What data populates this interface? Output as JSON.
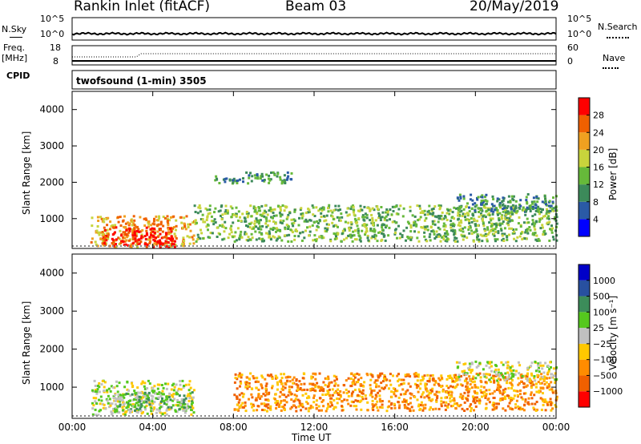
{
  "header": {
    "title": "Rankin Inlet (fitACF)",
    "beam": "Beam 03",
    "date": "20/May/2019"
  },
  "top_panels": {
    "nsky_label": "N.Sky",
    "nsky_ticks": [
      "10^5",
      "10^0"
    ],
    "nsearch_label": "N.Search",
    "nsearch_ticks": [
      "10^5",
      "10^0"
    ],
    "freq_label_1": "Freq.",
    "freq_label_2": "[MHz]",
    "freq_ticks": [
      "18",
      "8"
    ],
    "nave_label": "Nave",
    "nave_ticks": [
      "60",
      "0"
    ],
    "cpid_label": "CPID",
    "cpid_text": "twofsound (1-min) 3505"
  },
  "chart_data": [
    {
      "type": "heatmap",
      "name": "power",
      "ylabel": "Slant Range [km]",
      "xlabel": "Time UT",
      "xlim": [
        "00:00",
        "00:00"
      ],
      "x_ticks": [
        "00:00",
        "04:00",
        "08:00",
        "12:00",
        "16:00",
        "20:00",
        "00:00"
      ],
      "ylim": [
        180,
        4500
      ],
      "y_ticks": [
        1000,
        2000,
        3000,
        4000
      ],
      "colorbar_label": "Power [dB]",
      "colorbar_ticks": [
        "28",
        "24",
        "20",
        "16",
        "12",
        "8",
        "4"
      ],
      "colorbar_colors": [
        "#0000ff",
        "#2a5aa6",
        "#3c8a5a",
        "#66b93a",
        "#c8d43c",
        "#f0a020",
        "#f06000",
        "#ff0000"
      ],
      "structure": [
        {
          "t_start": 0.9,
          "t_end": 6.0,
          "r_low": 250,
          "r_high": 1100,
          "value": 20
        },
        {
          "t_start": 1.5,
          "t_end": 5.2,
          "r_low": 250,
          "r_high": 800,
          "value": 30
        },
        {
          "t_start": 6.0,
          "t_end": 24.0,
          "r_low": 400,
          "r_high": 1400,
          "value": 12
        },
        {
          "t_start": 7.0,
          "t_end": 11.0,
          "r_low": 2000,
          "r_high": 2300,
          "value": 8
        },
        {
          "t_start": 19.0,
          "t_end": 24.0,
          "r_low": 1200,
          "r_high": 1700,
          "value": 6
        }
      ]
    },
    {
      "type": "heatmap",
      "name": "velocity",
      "ylabel": "Slant Range [km]",
      "xlabel": "Time UT",
      "xlim": [
        "00:00",
        "00:00"
      ],
      "x_ticks": [
        "00:00",
        "04:00",
        "08:00",
        "12:00",
        "16:00",
        "20:00",
        "00:00"
      ],
      "ylim": [
        180,
        4500
      ],
      "y_ticks": [
        1000,
        2000,
        3000,
        4000
      ],
      "colorbar_label": "Velocity [m s⁻¹]",
      "colorbar_ticks": [
        "1000",
        "500",
        "100",
        "25",
        "−25",
        "−100",
        "−500",
        "−1000"
      ],
      "colorbar_colors": [
        "#ff0000",
        "#f06000",
        "#ff8c00",
        "#ffc800",
        "#c0c0c0",
        "#55c81e",
        "#3c8c5a",
        "#2850a0",
        "#0000c8"
      ],
      "structure": [
        {
          "t_start": 0.9,
          "t_end": 6.0,
          "r_low": 300,
          "r_high": 1200,
          "value": 0
        },
        {
          "t_start": 2.0,
          "t_end": 6.0,
          "r_low": 400,
          "r_high": 900,
          "value": 80
        },
        {
          "t_start": 8.0,
          "t_end": 24.0,
          "r_low": 400,
          "r_high": 1400,
          "value": -150
        },
        {
          "t_start": 19.0,
          "t_end": 24.0,
          "r_low": 1200,
          "r_high": 1700,
          "value": 0
        }
      ]
    }
  ]
}
